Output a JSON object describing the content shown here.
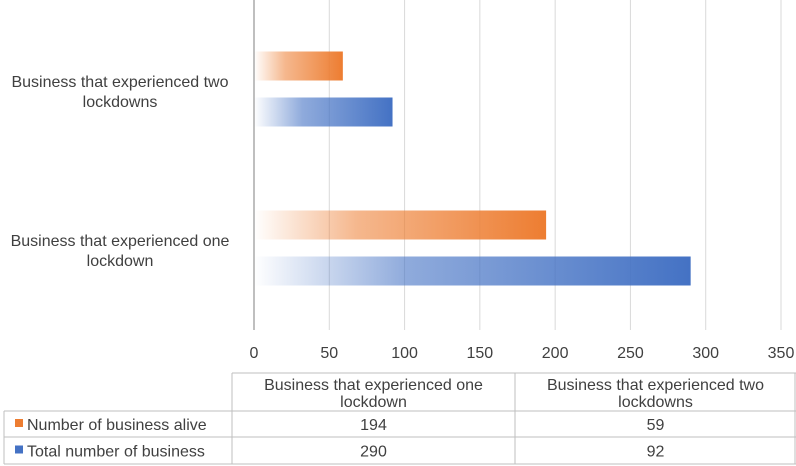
{
  "chart_data": {
    "type": "bar",
    "orientation": "horizontal",
    "categories": [
      "Business that experienced one lockdown",
      "Business that experienced two lockdowns"
    ],
    "series": [
      {
        "name": "Number of business alive",
        "values": [
          194,
          59
        ],
        "color": "#ED7D31"
      },
      {
        "name": "Total number of business",
        "values": [
          290,
          92
        ],
        "color": "#4472C4"
      }
    ],
    "xlim": [
      0,
      350
    ],
    "x_ticks": [
      0,
      50,
      100,
      150,
      200,
      250,
      300,
      350
    ],
    "category_label_lines": [
      [
        "Business that experienced one",
        "lockdown"
      ],
      [
        "Business that experienced two",
        "lockdowns"
      ]
    ],
    "data_table": {
      "header_lines": [
        [
          "Business that experienced one",
          "lockdown"
        ],
        [
          "Business that experienced two",
          "lockdowns"
        ]
      ],
      "rows": [
        {
          "label": "Number of business alive",
          "values": [
            "194",
            "59"
          ]
        },
        {
          "label": "Total number of business",
          "values": [
            "290",
            "92"
          ]
        }
      ]
    },
    "grid": "vertical",
    "legend": "in data table"
  }
}
